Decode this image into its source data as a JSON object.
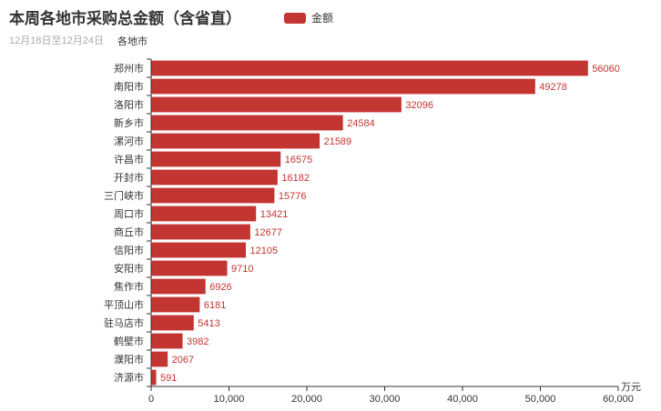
{
  "title": "本周各地市采购总金额（含省直）",
  "subtitle": "12月18日至12月24日",
  "legend": {
    "label": "金额",
    "color": "#c23531",
    "position": "top"
  },
  "chart_data": {
    "type": "bar",
    "orientation": "horizontal",
    "title": "本周各地市采购总金额（含省直）",
    "subtitle": "12月18日至12月24日",
    "ylabel": "各地市",
    "xlabel": "万元",
    "xlim": [
      0,
      60000
    ],
    "xticks": [
      "0",
      "10,000",
      "20,000",
      "30,000",
      "40,000",
      "50,000",
      "60,000"
    ],
    "grid": false,
    "legend_position": "top",
    "categories": [
      "郑州市",
      "南阳市",
      "洛阳市",
      "新乡市",
      "漯河市",
      "许昌市",
      "开封市",
      "三门峡市",
      "周口市",
      "商丘市",
      "信阳市",
      "安阳市",
      "焦作市",
      "平顶山市",
      "驻马店市",
      "鹤壁市",
      "濮阳市",
      "济源市"
    ],
    "series": [
      {
        "name": "金额",
        "color": "#c23531",
        "values": [
          56060,
          49278,
          32096,
          24584,
          21589,
          16575,
          16182,
          15776,
          13421,
          12677,
          12105,
          9710,
          6926,
          6181,
          5413,
          3982,
          2067,
          591
        ]
      }
    ]
  }
}
